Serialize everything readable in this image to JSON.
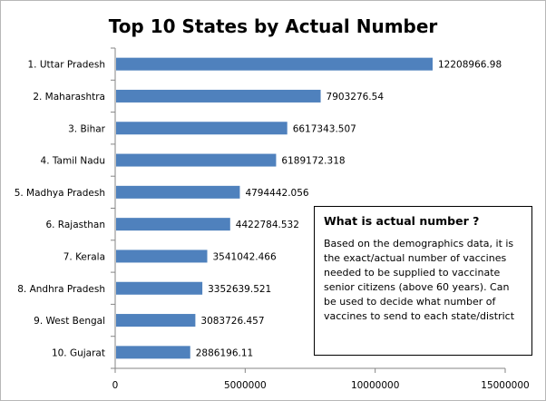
{
  "chart_data": {
    "type": "bar",
    "orientation": "horizontal",
    "title": "Top 10 States by Actual Number",
    "categories": [
      "1. Uttar  Pradesh",
      "2. Maharashtra",
      "3. Bihar",
      "4. Tamil  Nadu",
      "5. Madhya Pradesh",
      "6. Rajasthan",
      "7. Kerala",
      "8. Andhra Pradesh",
      "9. West Bengal",
      "10. Gujarat"
    ],
    "values": [
      12208966.98,
      7903276.54,
      6617343.507,
      6189172.318,
      4794442.056,
      4422784.532,
      3541042.466,
      3352639.521,
      3083726.457,
      2886196.11
    ],
    "value_labels": [
      "12208966.98",
      "7903276.54",
      "6617343.507",
      "6189172.318",
      "4794442.056",
      "4422784.532",
      "3541042.466",
      "3352639.521",
      "3083726.457",
      "2886196.11"
    ],
    "xlim": [
      0,
      15000000
    ],
    "x_ticks": [
      "0",
      "5000000",
      "10000000",
      "15000000"
    ],
    "bar_color": "#4f81bd",
    "grid": false,
    "legend": "none"
  },
  "annotation": {
    "title": "What is actual number ?",
    "body": "Based on the demographics data, it is the exact/actual number of vaccines needed to be supplied to vaccinate senior citizens (above 60 years). Can be used to decide what number of vaccines to send to each state/district"
  }
}
